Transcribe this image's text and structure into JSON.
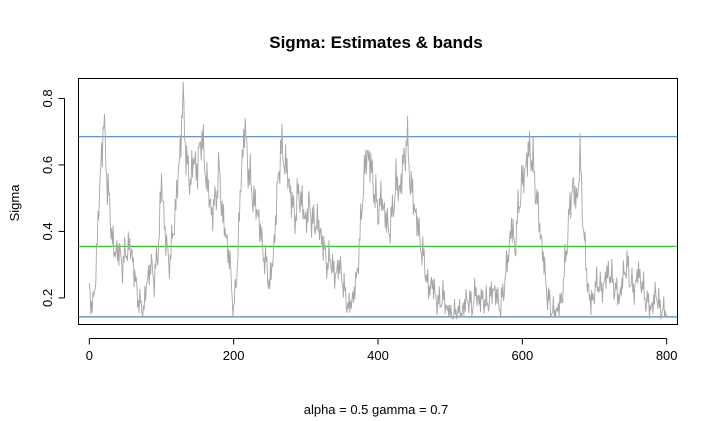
{
  "chart_data": {
    "type": "line",
    "title": "Sigma: Estimates & bands",
    "xlabel": "alpha = 0.5   gamma = 0.7",
    "ylabel": "Sigma",
    "xlim": [
      -15,
      815
    ],
    "ylim": [
      0.12,
      0.86
    ],
    "x_ticks": [
      0,
      200,
      400,
      600,
      800
    ],
    "y_ticks": [
      0.2,
      0.4,
      0.6,
      0.8
    ],
    "x_tick_labels": [
      "0",
      "200",
      "400",
      "600",
      "800"
    ],
    "y_tick_labels": [
      "0.2",
      "0.4",
      "0.6",
      "0.8"
    ],
    "grid": false,
    "series": [
      {
        "color": "#a6a6a6",
        "anchors": [
          [
            0,
            0.22
          ],
          [
            5,
            0.17
          ],
          [
            8,
            0.24
          ],
          [
            12,
            0.42
          ],
          [
            16,
            0.6
          ],
          [
            20,
            0.73
          ],
          [
            25,
            0.55
          ],
          [
            30,
            0.42
          ],
          [
            35,
            0.33
          ],
          [
            40,
            0.35
          ],
          [
            45,
            0.3
          ],
          [
            50,
            0.33
          ],
          [
            55,
            0.36
          ],
          [
            60,
            0.32
          ],
          [
            65,
            0.23
          ],
          [
            70,
            0.18
          ],
          [
            75,
            0.16
          ],
          [
            80,
            0.25
          ],
          [
            85,
            0.3
          ],
          [
            90,
            0.26
          ],
          [
            95,
            0.33
          ],
          [
            100,
            0.55
          ],
          [
            105,
            0.4
          ],
          [
            110,
            0.3
          ],
          [
            115,
            0.37
          ],
          [
            120,
            0.48
          ],
          [
            125,
            0.62
          ],
          [
            130,
            0.8
          ],
          [
            135,
            0.6
          ],
          [
            140,
            0.55
          ],
          [
            145,
            0.62
          ],
          [
            150,
            0.58
          ],
          [
            155,
            0.7
          ],
          [
            160,
            0.6
          ],
          [
            165,
            0.52
          ],
          [
            170,
            0.45
          ],
          [
            175,
            0.5
          ],
          [
            180,
            0.58
          ],
          [
            185,
            0.44
          ],
          [
            190,
            0.38
          ],
          [
            195,
            0.3
          ],
          [
            200,
            0.15
          ],
          [
            205,
            0.3
          ],
          [
            210,
            0.55
          ],
          [
            215,
            0.72
          ],
          [
            220,
            0.6
          ],
          [
            225,
            0.52
          ],
          [
            230,
            0.48
          ],
          [
            235,
            0.44
          ],
          [
            240,
            0.35
          ],
          [
            245,
            0.3
          ],
          [
            250,
            0.24
          ],
          [
            255,
            0.33
          ],
          [
            260,
            0.5
          ],
          [
            265,
            0.65
          ],
          [
            270,
            0.62
          ],
          [
            275,
            0.57
          ],
          [
            280,
            0.5
          ],
          [
            285,
            0.44
          ],
          [
            290,
            0.52
          ],
          [
            295,
            0.48
          ],
          [
            300,
            0.43
          ],
          [
            305,
            0.48
          ],
          [
            310,
            0.42
          ],
          [
            315,
            0.43
          ],
          [
            320,
            0.4
          ],
          [
            325,
            0.35
          ],
          [
            330,
            0.3
          ],
          [
            335,
            0.32
          ],
          [
            340,
            0.26
          ],
          [
            345,
            0.3
          ],
          [
            350,
            0.27
          ],
          [
            355,
            0.2
          ],
          [
            360,
            0.17
          ],
          [
            365,
            0.2
          ],
          [
            370,
            0.25
          ],
          [
            375,
            0.38
          ],
          [
            380,
            0.55
          ],
          [
            385,
            0.64
          ],
          [
            390,
            0.6
          ],
          [
            395,
            0.52
          ],
          [
            400,
            0.46
          ],
          [
            405,
            0.5
          ],
          [
            410,
            0.45
          ],
          [
            415,
            0.4
          ],
          [
            420,
            0.45
          ],
          [
            425,
            0.55
          ],
          [
            430,
            0.52
          ],
          [
            435,
            0.6
          ],
          [
            440,
            0.68
          ],
          [
            445,
            0.55
          ],
          [
            450,
            0.48
          ],
          [
            455,
            0.42
          ],
          [
            460,
            0.35
          ],
          [
            465,
            0.3
          ],
          [
            470,
            0.22
          ],
          [
            475,
            0.25
          ],
          [
            480,
            0.2
          ],
          [
            485,
            0.18
          ],
          [
            490,
            0.21
          ],
          [
            495,
            0.17
          ],
          [
            500,
            0.15
          ],
          [
            505,
            0.14
          ],
          [
            510,
            0.16
          ],
          [
            515,
            0.15
          ],
          [
            520,
            0.18
          ],
          [
            525,
            0.2
          ],
          [
            530,
            0.17
          ],
          [
            535,
            0.22
          ],
          [
            540,
            0.19
          ],
          [
            545,
            0.2
          ],
          [
            550,
            0.18
          ],
          [
            555,
            0.2
          ],
          [
            560,
            0.23
          ],
          [
            565,
            0.2
          ],
          [
            570,
            0.17
          ],
          [
            575,
            0.24
          ],
          [
            580,
            0.32
          ],
          [
            585,
            0.42
          ],
          [
            590,
            0.35
          ],
          [
            595,
            0.48
          ],
          [
            600,
            0.55
          ],
          [
            605,
            0.6
          ],
          [
            610,
            0.65
          ],
          [
            615,
            0.6
          ],
          [
            620,
            0.5
          ],
          [
            625,
            0.4
          ],
          [
            630,
            0.3
          ],
          [
            635,
            0.2
          ],
          [
            640,
            0.17
          ],
          [
            645,
            0.15
          ],
          [
            650,
            0.17
          ],
          [
            655,
            0.2
          ],
          [
            660,
            0.32
          ],
          [
            665,
            0.45
          ],
          [
            670,
            0.55
          ],
          [
            675,
            0.48
          ],
          [
            680,
            0.62
          ],
          [
            685,
            0.4
          ],
          [
            690,
            0.25
          ],
          [
            695,
            0.18
          ],
          [
            700,
            0.22
          ],
          [
            705,
            0.25
          ],
          [
            710,
            0.22
          ],
          [
            715,
            0.26
          ],
          [
            720,
            0.28
          ],
          [
            725,
            0.25
          ],
          [
            730,
            0.22
          ],
          [
            735,
            0.2
          ],
          [
            740,
            0.27
          ],
          [
            745,
            0.3
          ],
          [
            750,
            0.25
          ],
          [
            755,
            0.22
          ],
          [
            760,
            0.28
          ],
          [
            765,
            0.25
          ],
          [
            770,
            0.2
          ],
          [
            775,
            0.18
          ],
          [
            780,
            0.17
          ],
          [
            785,
            0.22
          ],
          [
            790,
            0.17
          ],
          [
            795,
            0.16
          ],
          [
            800,
            0.15
          ]
        ]
      }
    ],
    "hlines": [
      {
        "y": 0.685,
        "color": "#4f86c6"
      },
      {
        "y": 0.355,
        "color": "#2ecc2e"
      },
      {
        "y": 0.143,
        "color": "#4f86c6"
      }
    ]
  }
}
